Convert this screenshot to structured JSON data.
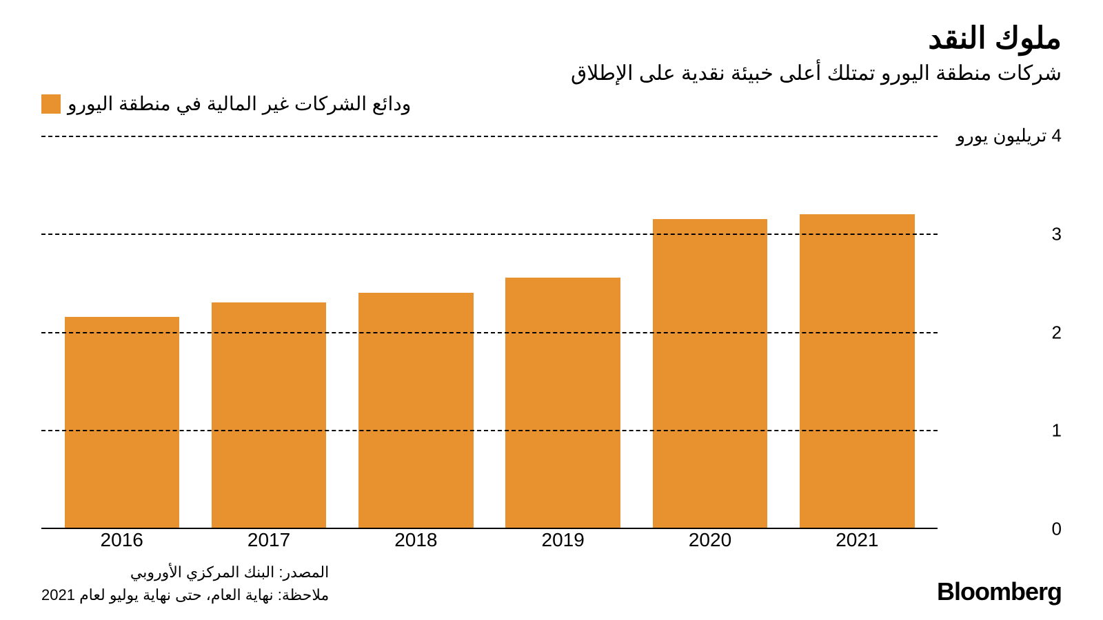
{
  "title": "ملوك النقد",
  "subtitle": "شركات منطقة اليورو تمتلك أعلى خبيئة نقدية على الإطلاق",
  "legend": {
    "label": "ودائع الشركات غير المالية في منطقة اليورو",
    "swatch_color": "#e8912f"
  },
  "chart": {
    "type": "bar",
    "categories": [
      "2016",
      "2017",
      "2018",
      "2019",
      "2020",
      "2021"
    ],
    "values": [
      2.15,
      2.3,
      2.4,
      2.55,
      3.15,
      3.2
    ],
    "bar_color": "#e8912f",
    "background_color": "#ffffff",
    "grid_color": "#000000",
    "axis_color": "#000000",
    "ylim": [
      0,
      4
    ],
    "ytick_step": 1,
    "y_ticks": [
      {
        "value": 0,
        "label": "0"
      },
      {
        "value": 1,
        "label": "1"
      },
      {
        "value": 2,
        "label": "2"
      },
      {
        "value": 3,
        "label": "3"
      },
      {
        "value": 4,
        "label": "4 تريليون يورو"
      }
    ],
    "bar_width_pct": 78,
    "grid_dash": "dashed",
    "title_fontsize": 44,
    "subtitle_fontsize": 30,
    "legend_fontsize": 28,
    "tick_fontsize": 26,
    "xlabel_fontsize": 28
  },
  "source": "المصدر: البنك المركزي الأوروبي",
  "note": "ملاحظة: نهاية العام، حتى نهاية يوليو لعام 2021",
  "brand": "Bloomberg"
}
